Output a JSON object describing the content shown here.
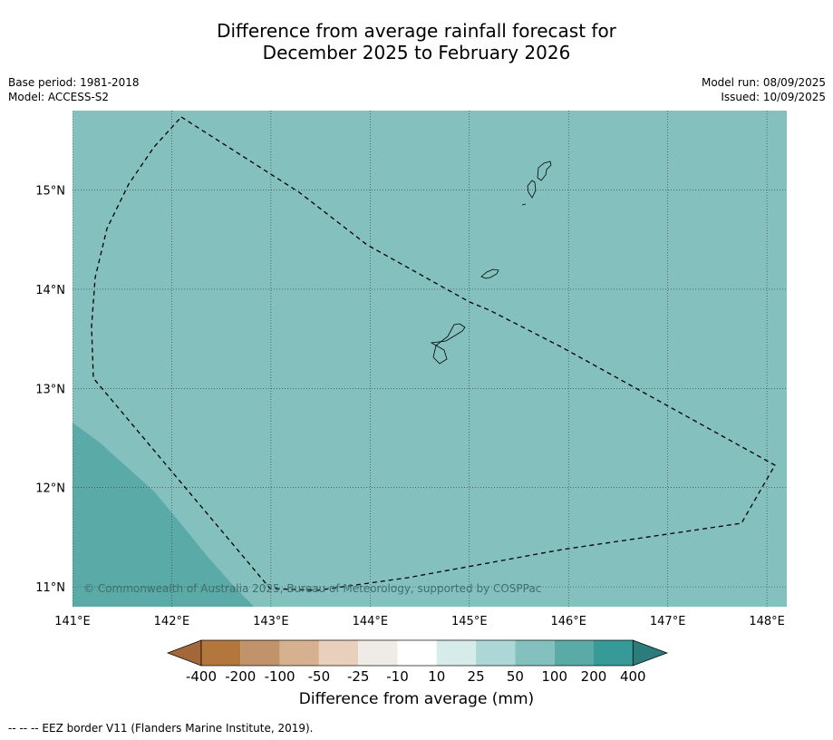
{
  "title": {
    "line1": "Difference from average rainfall forecast for",
    "line2": "December 2025 to February 2026"
  },
  "meta": {
    "base_period": "Base period: 1981-2018",
    "model": "Model: ACCESS-S2",
    "model_run": "Model run: 08/09/2025",
    "issued": "Issued: 10/09/2025"
  },
  "map": {
    "lon_range": [
      141,
      148.2
    ],
    "lat_range": [
      10.8,
      15.8
    ],
    "lon_ticks": [
      141,
      142,
      143,
      144,
      145,
      146,
      147,
      148
    ],
    "lon_tick_labels": [
      "141°E",
      "142°E",
      "143°E",
      "144°E",
      "145°E",
      "146°E",
      "147°E",
      "148°E"
    ],
    "lat_ticks": [
      11,
      12,
      13,
      14,
      15
    ],
    "lat_tick_labels": [
      "11°N",
      "12°N",
      "13°N",
      "14°N",
      "15°N"
    ],
    "background_category": "50 to 100",
    "background_color": "#83c0be",
    "anomaly_region_category": "100 to 200",
    "anomaly_region_color": "#5aaaa8",
    "grid": true,
    "copyright": "© Commonwealth of Australia 2025, Bureau of Meteorology, supported by COSPPac"
  },
  "colorbar": {
    "title": "Difference from average (mm)",
    "tick_labels": [
      "-400",
      "-200",
      "-100",
      "-50",
      "-25",
      "-10",
      "10",
      "25",
      "50",
      "100",
      "200",
      "400"
    ],
    "colors": [
      "#a4673a",
      "#b3773e",
      "#c0936b",
      "#d5b18f",
      "#e8d0bd",
      "#efebe7",
      "#ffffff",
      "#d5eceb",
      "#acd7d6",
      "#83c0be",
      "#5aaaa8",
      "#369a98",
      "#2b7c7a"
    ]
  },
  "footnote": "--  --  -- EEZ border V11 (Flanders Marine Institute, 2019)."
}
